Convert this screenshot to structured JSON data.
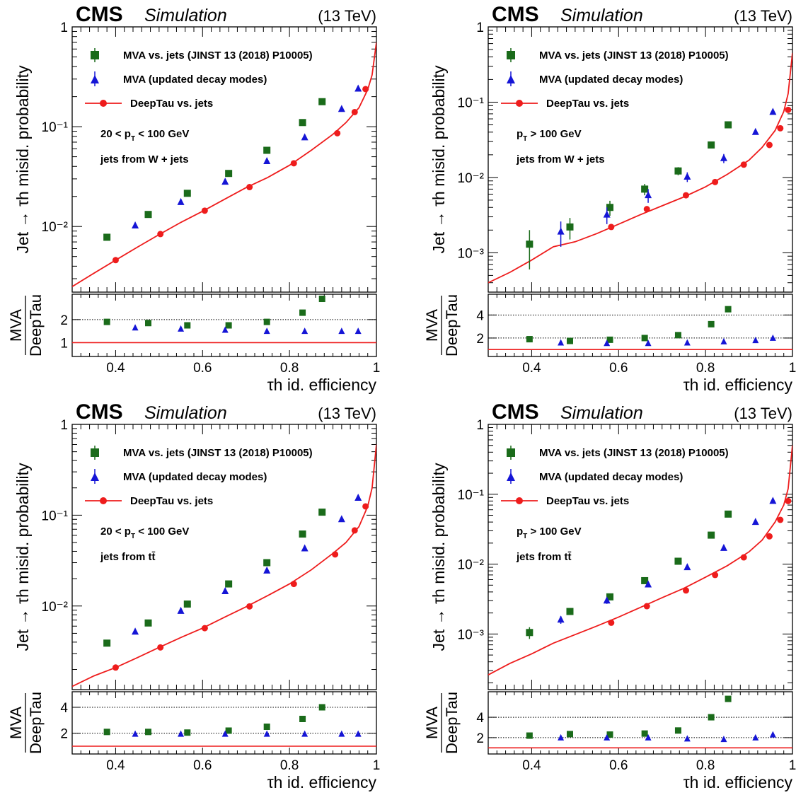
{
  "figure": {
    "cms_label": "CMS",
    "sim_label": "Simulation",
    "energy_label": "(13 TeV)",
    "ylabel": "Jet → τh misid. probability",
    "ratio_ylabel_top": "MVA",
    "ratio_ylabel_bottom": "DeepTau",
    "xlabel": "τh id. efficiency"
  },
  "legend": {
    "mva_old": "MVA vs. jets (JINST 13 (2018) P10005)",
    "mva_new": "MVA (updated decay modes)",
    "deeptau": "DeepTau vs. jets"
  },
  "colors": {
    "mva_old": "#1a6b1a",
    "mva_new": "#1515d6",
    "deeptau": "#ee1c1c"
  },
  "chart_data": [
    {
      "type": "scatter",
      "id": "top-left",
      "annotation": [
        "20 < pT < 100 GeV",
        "jets from W + jets"
      ],
      "xlim": [
        0.3,
        1.0
      ],
      "ylim": [
        0.0022,
        1.0
      ],
      "yscale": "log",
      "yticks": [
        "10⁻²",
        "10⁻¹",
        "1"
      ],
      "ratio_ylim": [
        0.4,
        3.1
      ],
      "ratio_yticks": [
        1,
        2
      ],
      "ratio_dotted": [
        2
      ],
      "xticks": [
        0.4,
        0.6,
        0.8,
        1
      ],
      "series": [
        {
          "name": "MVA vs. jets (JINST 13 (2018) P10005)",
          "x": [
            0.38,
            0.475,
            0.565,
            0.66,
            0.748,
            0.83,
            0.875
          ],
          "y": [
            0.0078,
            0.0132,
            0.0215,
            0.034,
            0.058,
            0.11,
            0.178
          ],
          "err": [
            0,
            0,
            0,
            0,
            0,
            0,
            0
          ]
        },
        {
          "name": "MVA (updated decay modes)",
          "x": [
            0.445,
            0.55,
            0.652,
            0.748,
            0.835,
            0.92,
            0.958
          ],
          "y": [
            0.0102,
            0.0175,
            0.028,
            0.045,
            0.078,
            0.15,
            0.24
          ],
          "err": [
            0,
            0,
            0,
            0,
            0,
            0,
            0
          ]
        },
        {
          "name": "DeepTau vs. jets",
          "curve_x": [
            0.3,
            0.35,
            0.4,
            0.45,
            0.5,
            0.55,
            0.6,
            0.65,
            0.7,
            0.75,
            0.8,
            0.85,
            0.9,
            0.93,
            0.96,
            0.98,
            0.99,
            1.0
          ],
          "curve_y": [
            0.0025,
            0.0034,
            0.0046,
            0.0062,
            0.0083,
            0.011,
            0.0142,
            0.0187,
            0.0245,
            0.031,
            0.041,
            0.058,
            0.084,
            0.11,
            0.155,
            0.235,
            0.33,
            0.7
          ],
          "x": [
            0.4,
            0.503,
            0.605,
            0.708,
            0.81,
            0.91,
            0.95,
            0.975
          ],
          "y": [
            0.0046,
            0.0084,
            0.0144,
            0.0248,
            0.043,
            0.086,
            0.14,
            0.238
          ]
        }
      ],
      "ratio": {
        "mva_old": [
          1.9,
          1.85,
          1.75,
          1.75,
          1.9,
          2.3,
          2.9
        ],
        "mva_new": [
          1.65,
          1.6,
          1.55,
          1.5,
          1.5,
          1.5,
          1.5
        ]
      }
    },
    {
      "type": "scatter",
      "id": "top-right",
      "annotation": [
        "pT > 100 GeV",
        "jets from W + jets"
      ],
      "xlim": [
        0.3,
        1.0
      ],
      "ylim": [
        0.0003,
        1.0
      ],
      "yscale": "log",
      "yticks": [
        "10⁻³",
        "10⁻²",
        "10⁻¹",
        "1"
      ],
      "ratio_ylim": [
        0.4,
        5.8
      ],
      "ratio_yticks": [
        2,
        4
      ],
      "ratio_dotted": [
        2,
        4
      ],
      "xticks": [
        0.4,
        0.6,
        0.8,
        1
      ],
      "series": [
        {
          "name": "MVA vs. jets (JINST 13 (2018) P10005)",
          "x": [
            0.395,
            0.488,
            0.58,
            0.66,
            0.737,
            0.813,
            0.852
          ],
          "y": [
            0.0013,
            0.0022,
            0.004,
            0.007,
            0.0122,
            0.027,
            0.05
          ],
          "err": [
            0.0007,
            0.0007,
            0.0009,
            0.0012,
            0.0015,
            0,
            0
          ]
        },
        {
          "name": "MVA (updated decay modes)",
          "x": [
            0.467,
            0.573,
            0.668,
            0.758,
            0.842,
            0.915,
            0.955
          ],
          "y": [
            0.0019,
            0.0032,
            0.0058,
            0.0102,
            0.018,
            0.04,
            0.074
          ],
          "err": [
            0.0007,
            0.0008,
            0.0012,
            0.0015,
            0.0025,
            0,
            0
          ]
        },
        {
          "name": "DeepTau vs. jets",
          "curve_x": [
            0.3,
            0.35,
            0.4,
            0.45,
            0.5,
            0.55,
            0.6,
            0.65,
            0.7,
            0.75,
            0.8,
            0.85,
            0.9,
            0.93,
            0.96,
            0.98,
            0.99,
            1.0
          ],
          "curve_y": [
            0.0004,
            0.00055,
            0.0008,
            0.0012,
            0.0014,
            0.0018,
            0.0024,
            0.0032,
            0.0042,
            0.0055,
            0.0075,
            0.011,
            0.017,
            0.025,
            0.042,
            0.075,
            0.13,
            0.45
          ],
          "x": [
            0.583,
            0.665,
            0.755,
            0.822,
            0.888,
            0.947,
            0.972,
            0.99
          ],
          "y": [
            0.0022,
            0.0038,
            0.0058,
            0.0087,
            0.0148,
            0.027,
            0.045,
            0.079
          ]
        }
      ],
      "ratio": {
        "mva_old": [
          1.9,
          1.75,
          1.85,
          2.0,
          2.25,
          3.2,
          4.5
        ],
        "mva_new": [
          1.6,
          1.55,
          1.55,
          1.6,
          1.7,
          1.8,
          2.0
        ]
      }
    },
    {
      "type": "scatter",
      "id": "bottom-left",
      "annotation": [
        "20 < pT < 100 GeV",
        "jets from tt̄"
      ],
      "xlim": [
        0.3,
        1.0
      ],
      "ylim": [
        0.0012,
        1.0
      ],
      "yscale": "log",
      "yticks": [
        "10⁻²",
        "10⁻¹",
        "1"
      ],
      "ratio_ylim": [
        0.4,
        5.2
      ],
      "ratio_yticks": [
        2,
        4
      ],
      "ratio_dotted": [
        2,
        4
      ],
      "xticks": [
        0.4,
        0.6,
        0.8,
        1
      ],
      "series": [
        {
          "name": "MVA vs. jets (JINST 13 (2018) P10005)",
          "x": [
            0.38,
            0.475,
            0.565,
            0.66,
            0.748,
            0.83,
            0.875
          ],
          "y": [
            0.0039,
            0.0065,
            0.0105,
            0.0175,
            0.03,
            0.062,
            0.108
          ],
          "err": [
            0,
            0,
            0,
            0,
            0,
            0,
            0
          ]
        },
        {
          "name": "MVA (updated decay modes)",
          "x": [
            0.445,
            0.55,
            0.652,
            0.748,
            0.835,
            0.92,
            0.958
          ],
          "y": [
            0.0052,
            0.0088,
            0.0145,
            0.0245,
            0.043,
            0.09,
            0.155
          ],
          "err": [
            0,
            0,
            0,
            0,
            0,
            0,
            0
          ]
        },
        {
          "name": "DeepTau vs. jets",
          "curve_x": [
            0.3,
            0.35,
            0.4,
            0.45,
            0.5,
            0.55,
            0.6,
            0.65,
            0.7,
            0.75,
            0.8,
            0.85,
            0.9,
            0.93,
            0.96,
            0.98,
            0.99,
            1.0
          ],
          "curve_y": [
            0.0013,
            0.0017,
            0.0021,
            0.0027,
            0.0035,
            0.0045,
            0.0057,
            0.0075,
            0.0098,
            0.013,
            0.0175,
            0.025,
            0.038,
            0.05,
            0.075,
            0.125,
            0.2,
            0.6
          ],
          "x": [
            0.4,
            0.503,
            0.605,
            0.708,
            0.81,
            0.905,
            0.95,
            0.975
          ],
          "y": [
            0.0021,
            0.0035,
            0.0057,
            0.0099,
            0.0175,
            0.037,
            0.068,
            0.125
          ]
        }
      ],
      "ratio": {
        "mva_old": [
          2.1,
          2.1,
          2.05,
          2.2,
          2.5,
          3.1,
          4.0
        ],
        "mva_new": [
          1.95,
          1.95,
          1.95,
          1.95,
          1.95,
          1.95,
          1.95
        ]
      }
    },
    {
      "type": "scatter",
      "id": "bottom-right",
      "annotation": [
        "pT > 100 GeV",
        "jets from tt̄"
      ],
      "xlim": [
        0.3,
        1.0
      ],
      "ylim": [
        0.00016,
        1.0
      ],
      "yscale": "log",
      "yticks": [
        "10⁻³",
        "10⁻²",
        "10⁻¹",
        "1"
      ],
      "ratio_ylim": [
        0.4,
        6.5
      ],
      "ratio_yticks": [
        2,
        4
      ],
      "ratio_dotted": [
        2,
        4
      ],
      "xticks": [
        0.4,
        0.6,
        0.8,
        1
      ],
      "series": [
        {
          "name": "MVA vs. jets (JINST 13 (2018) P10005)",
          "x": [
            0.395,
            0.488,
            0.58,
            0.66,
            0.737,
            0.813,
            0.852
          ],
          "y": [
            0.00105,
            0.0021,
            0.0034,
            0.0058,
            0.011,
            0.026,
            0.052
          ],
          "err": [
            0.0002,
            0.0002,
            0.0003,
            0,
            0,
            0,
            0
          ]
        },
        {
          "name": "MVA (updated decay modes)",
          "x": [
            0.467,
            0.573,
            0.668,
            0.758,
            0.842,
            0.915,
            0.955
          ],
          "y": [
            0.0016,
            0.003,
            0.0051,
            0.009,
            0.017,
            0.04,
            0.08
          ],
          "err": [
            0.0002,
            0.0003,
            0,
            0,
            0,
            0,
            0
          ]
        },
        {
          "name": "DeepTau vs. jets",
          "curve_x": [
            0.3,
            0.35,
            0.4,
            0.45,
            0.5,
            0.55,
            0.6,
            0.65,
            0.7,
            0.75,
            0.8,
            0.85,
            0.9,
            0.93,
            0.96,
            0.98,
            0.99,
            1.0
          ],
          "curve_y": [
            0.00026,
            0.00038,
            0.00052,
            0.00074,
            0.00098,
            0.0013,
            0.00175,
            0.0024,
            0.0033,
            0.0045,
            0.0065,
            0.0095,
            0.015,
            0.022,
            0.04,
            0.07,
            0.12,
            0.5
          ],
          "x": [
            0.583,
            0.665,
            0.755,
            0.822,
            0.888,
            0.947,
            0.972,
            0.99
          ],
          "y": [
            0.00145,
            0.0025,
            0.0042,
            0.007,
            0.0125,
            0.025,
            0.043,
            0.08
          ]
        }
      ],
      "ratio": {
        "mva_old": [
          2.2,
          2.35,
          2.3,
          2.4,
          2.7,
          4.0,
          5.8
        ],
        "mva_new": [
          2.0,
          2.0,
          2.0,
          1.9,
          1.85,
          2.0,
          2.3
        ]
      }
    }
  ]
}
